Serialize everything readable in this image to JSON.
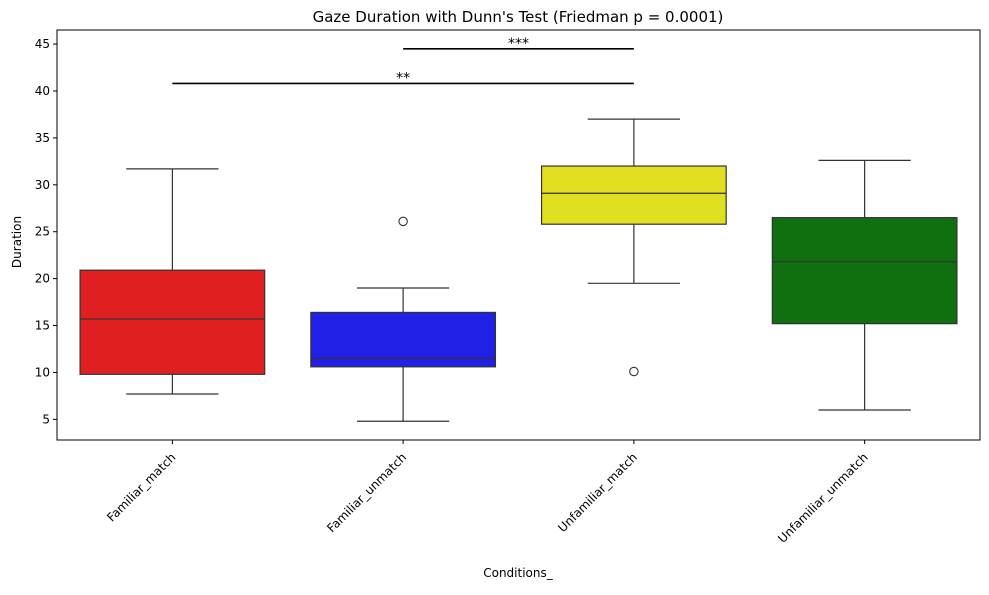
{
  "chart_data": {
    "type": "box",
    "title": "Gaze Duration with Dunn's Test (Friedman p = 0.0001)",
    "xlabel": "Conditions_",
    "ylabel": "Duration",
    "ylim": [
      2.8,
      46.5
    ],
    "yticks": [
      5,
      10,
      15,
      20,
      25,
      30,
      35,
      40,
      45
    ],
    "grid": false,
    "categories": [
      "Familiar_match",
      "Familiar_unmatch",
      "Unfamiliar_match",
      "Unfamiliar_unmatch"
    ],
    "boxes": [
      {
        "category": "Familiar_match",
        "color": "#e02020",
        "whisker_low": 7.7,
        "q1": 9.8,
        "median": 15.7,
        "q3": 20.9,
        "whisker_high": 31.7,
        "outliers": []
      },
      {
        "category": "Familiar_unmatch",
        "color": "#2020e6",
        "whisker_low": 4.8,
        "q1": 10.6,
        "median": 11.5,
        "q3": 16.4,
        "whisker_high": 19.0,
        "outliers": [
          26.1
        ]
      },
      {
        "category": "Unfamiliar_match",
        "color": "#e0e020",
        "whisker_low": 19.5,
        "q1": 25.8,
        "median": 29.1,
        "q3": 32.0,
        "whisker_high": 37.0,
        "outliers": [
          10.1
        ]
      },
      {
        "category": "Unfamiliar_unmatch",
        "color": "#107010",
        "whisker_low": 6.0,
        "q1": 15.2,
        "median": 21.8,
        "q3": 26.5,
        "whisker_high": 32.6,
        "outliers": []
      }
    ],
    "significance": [
      {
        "from": "Familiar_match",
        "to": "Unfamiliar_match",
        "y": 40.8,
        "label": "**"
      },
      {
        "from": "Familiar_unmatch",
        "to": "Unfamiliar_match",
        "y": 44.5,
        "label": "***"
      }
    ]
  }
}
